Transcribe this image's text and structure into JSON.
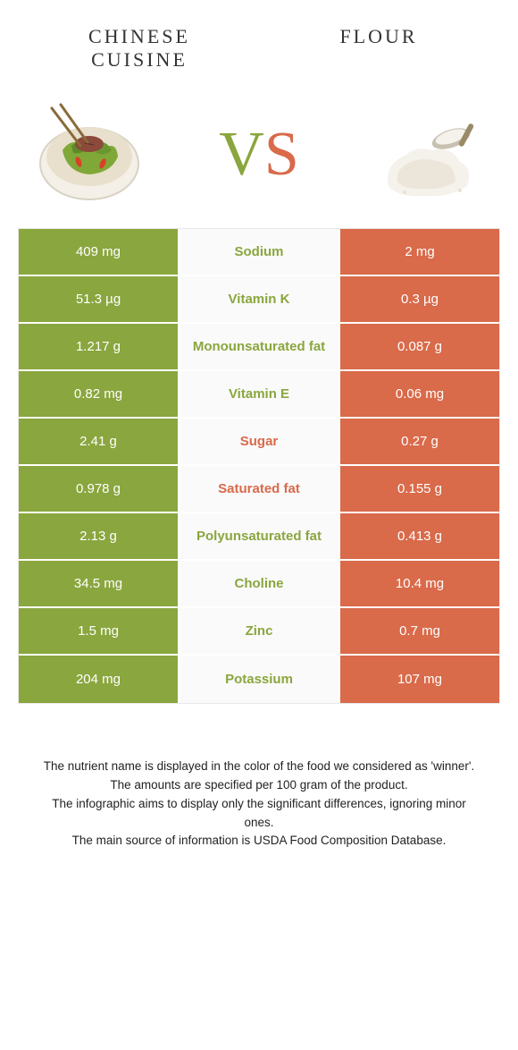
{
  "colors": {
    "green": "#8aa63e",
    "orange": "#d96a4a",
    "mid_bg": "#fafafa",
    "white": "#ffffff",
    "text_dark": "#333333"
  },
  "header": {
    "left_title": "CHINESE CUISINE",
    "right_title": "FLOUR",
    "vs_v": "V",
    "vs_s": "S"
  },
  "table": {
    "rows": [
      {
        "left": "409 mg",
        "label": "Sodium",
        "right": "2 mg",
        "winner": "green"
      },
      {
        "left": "51.3 µg",
        "label": "Vitamin K",
        "right": "0.3 µg",
        "winner": "green"
      },
      {
        "left": "1.217 g",
        "label": "Monounsaturated fat",
        "right": "0.087 g",
        "winner": "green"
      },
      {
        "left": "0.82 mg",
        "label": "Vitamin E",
        "right": "0.06 mg",
        "winner": "green"
      },
      {
        "left": "2.41 g",
        "label": "Sugar",
        "right": "0.27 g",
        "winner": "orange"
      },
      {
        "left": "0.978 g",
        "label": "Saturated fat",
        "right": "0.155 g",
        "winner": "orange"
      },
      {
        "left": "2.13 g",
        "label": "Polyunsaturated fat",
        "right": "0.413 g",
        "winner": "green"
      },
      {
        "left": "34.5 mg",
        "label": "Choline",
        "right": "10.4 mg",
        "winner": "green"
      },
      {
        "left": "1.5 mg",
        "label": "Zinc",
        "right": "0.7 mg",
        "winner": "green"
      },
      {
        "left": "204 mg",
        "label": "Potassium",
        "right": "107 mg",
        "winner": "green"
      }
    ]
  },
  "footer": {
    "line1": "The nutrient name is displayed in the color of the food we considered as 'winner'.",
    "line2": "The amounts are specified per 100 gram of the product.",
    "line3": "The infographic aims to display only the significant differences, ignoring minor ones.",
    "line4": "The main source of information is USDA Food Composition Database."
  }
}
